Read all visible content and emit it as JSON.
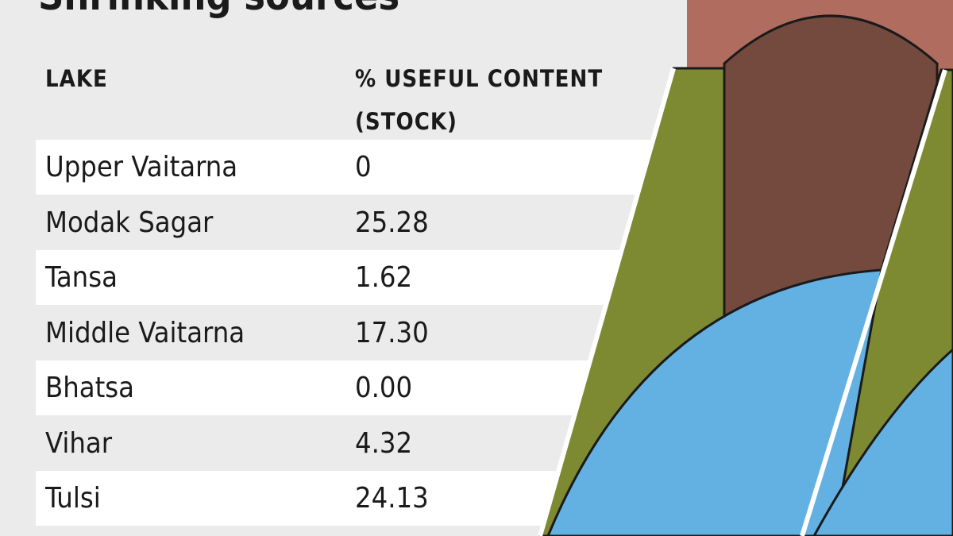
{
  "title": "Shrinking sources",
  "table": {
    "header": [
      "LAKE",
      "% USEFUL CONTENT (STOCK)"
    ],
    "rows": [
      [
        "Upper Vaitarna",
        "0"
      ],
      [
        "Modak Sagar",
        "25.28"
      ],
      [
        "Tansa",
        "1.62"
      ],
      [
        "Middle Vaitarna",
        "17.30"
      ],
      [
        "Bhatsa",
        "0.00"
      ],
      [
        "Vihar",
        "4.32"
      ],
      [
        "Tulsi",
        "24.13"
      ]
    ]
  }
}
